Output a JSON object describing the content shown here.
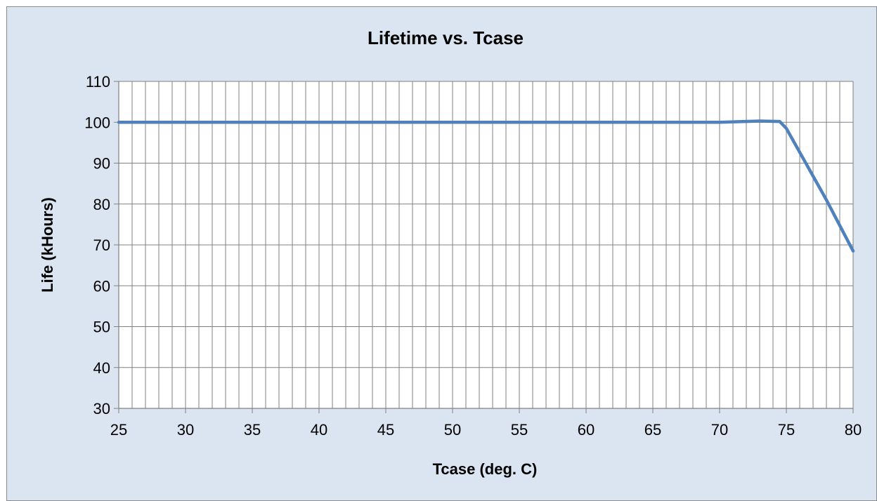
{
  "chart_data": {
    "type": "line",
    "title": "Lifetime vs. Tcase",
    "xlabel": "Tcase (deg. C)",
    "ylabel": "Life (kHours)",
    "xlim": [
      25,
      80
    ],
    "ylim": [
      30,
      110
    ],
    "xticks": [
      25,
      30,
      35,
      40,
      45,
      50,
      55,
      60,
      65,
      70,
      75,
      80
    ],
    "yticks": [
      30,
      40,
      50,
      60,
      70,
      80,
      90,
      100,
      110
    ],
    "x_minor_gridline_step": 1,
    "grid": true,
    "legend": "none",
    "series": [
      {
        "color": "#4f81bd",
        "x": [
          25,
          70,
          73,
          74.5,
          75,
          78,
          80
        ],
        "y": [
          100,
          100,
          100.3,
          100.2,
          98.5,
          81,
          68.5
        ]
      }
    ]
  },
  "colors": {
    "background": "#dbe5f1",
    "plot_area": "#ffffff",
    "gridline": "#808080",
    "series": "#4f81bd"
  }
}
